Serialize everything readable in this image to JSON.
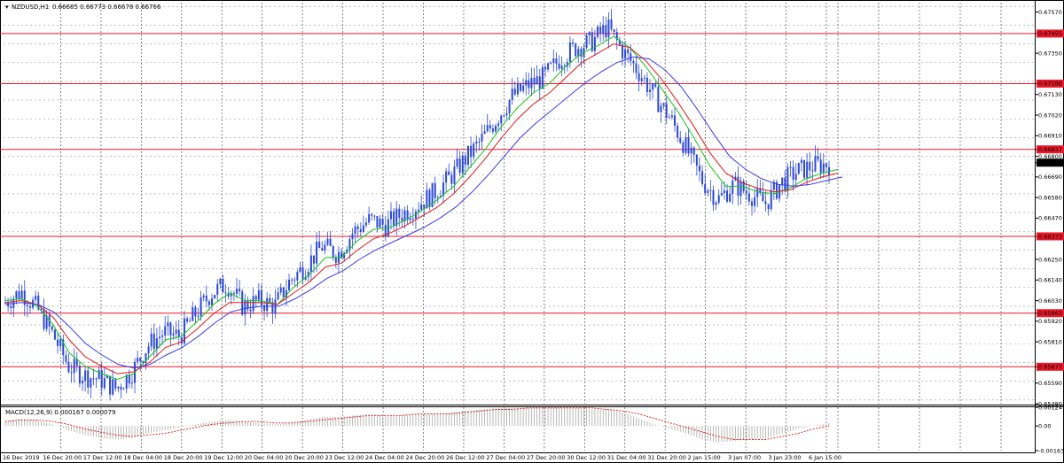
{
  "chart_data": {
    "type": "candlestick",
    "symbol_label": "NZDUSD,H1",
    "ohlc_label": "0.66685 0.66773 0.66678 0.66766",
    "current_price": "0.66766",
    "y_ticks": [
      "0.67570",
      "0.67455",
      "0.67350",
      "0.67188",
      "0.67130",
      "0.67020",
      "0.66910",
      "0.66837",
      "0.66800",
      "0.66766",
      "0.66690",
      "0.66580",
      "0.66470",
      "0.66373",
      "0.66250",
      "0.66140",
      "0.66030",
      "0.65963",
      "0.65920",
      "0.65810",
      "0.65677",
      "0.65590",
      "0.65480"
    ],
    "ylim": [
      0.6548,
      0.6762
    ],
    "horizontal_levels": [
      "0.67455",
      "0.67188",
      "0.66837",
      "0.66373",
      "0.65963",
      "0.65677"
    ],
    "level_color": "#e8182a",
    "x_labels": [
      "16 Dec 2019",
      "16 Dec 20:00",
      "17 Dec 12:00",
      "18 Dec 04:00",
      "18 Dec 20:00",
      "19 Dec 12:00",
      "20 Dec 04:00",
      "20 Dec 20:00",
      "23 Dec 12:00",
      "24 Dec 04:00",
      "24 Dec 20:00",
      "26 Dec 12:00",
      "27 Dec 04:00",
      "27 Dec 20:00",
      "30 Dec 12:00",
      "31 Dec 04:00",
      "31 Dec 20:00",
      "2 Jan 15:00",
      "3 Jan 07:00",
      "3 Jan 23:00",
      "6 Jan 15:00"
    ],
    "price_series": [
      {
        "color": "#2b49d8",
        "values": [
          0.6602,
          0.6608,
          0.6599,
          0.6585,
          0.6568,
          0.6563,
          0.6561,
          0.6556,
          0.6565,
          0.6579,
          0.6586,
          0.6584,
          0.6596,
          0.6607,
          0.6612,
          0.66,
          0.6603,
          0.66,
          0.6614,
          0.6622,
          0.6632,
          0.6628,
          0.664,
          0.6646,
          0.6643,
          0.6649,
          0.6654,
          0.666,
          0.6668,
          0.6678,
          0.6688,
          0.67,
          0.6712,
          0.6718,
          0.6722,
          0.6732,
          0.6738,
          0.6741,
          0.6749,
          0.6736,
          0.6725,
          0.6712,
          0.67,
          0.6684,
          0.6667,
          0.6657,
          0.6665,
          0.666,
          0.6655,
          0.6666,
          0.6672,
          0.6675,
          0.6676
        ]
      },
      {
        "color": "#19c419",
        "values": [
          0.6603,
          0.6604,
          0.66,
          0.659,
          0.6575,
          0.6568,
          0.6564,
          0.6561,
          0.6564,
          0.6573,
          0.6582,
          0.6584,
          0.6592,
          0.6601,
          0.6607,
          0.6603,
          0.6603,
          0.6601,
          0.661,
          0.6617,
          0.6626,
          0.6626,
          0.6635,
          0.6641,
          0.6642,
          0.6646,
          0.6651,
          0.6657,
          0.6664,
          0.6674,
          0.6684,
          0.6696,
          0.6706,
          0.6714,
          0.6719,
          0.6728,
          0.6735,
          0.6739,
          0.6744,
          0.6738,
          0.6728,
          0.6716,
          0.6704,
          0.669,
          0.6675,
          0.6664,
          0.6664,
          0.6661,
          0.666,
          0.6663,
          0.6668,
          0.6671,
          0.6673
        ]
      },
      {
        "color": "#e01a1a",
        "values": [
          0.6602,
          0.6603,
          0.6601,
          0.6594,
          0.6582,
          0.6573,
          0.6568,
          0.6564,
          0.6565,
          0.657,
          0.6578,
          0.6581,
          0.6588,
          0.6596,
          0.6602,
          0.6602,
          0.6602,
          0.6601,
          0.6607,
          0.6613,
          0.6621,
          0.6623,
          0.663,
          0.6636,
          0.6639,
          0.6643,
          0.6648,
          0.6653,
          0.666,
          0.6669,
          0.6679,
          0.669,
          0.67,
          0.6708,
          0.6714,
          0.6722,
          0.673,
          0.6735,
          0.674,
          0.6738,
          0.6731,
          0.6721,
          0.6709,
          0.6696,
          0.6682,
          0.6671,
          0.6666,
          0.6663,
          0.6661,
          0.6662,
          0.6666,
          0.6669,
          0.6671
        ]
      },
      {
        "color": "#3a3ae8",
        "values": [
          0.6601,
          0.6602,
          0.6601,
          0.6597,
          0.6589,
          0.658,
          0.6574,
          0.6569,
          0.6567,
          0.6569,
          0.6574,
          0.6578,
          0.6584,
          0.6591,
          0.6597,
          0.6599,
          0.66,
          0.66,
          0.6604,
          0.6609,
          0.6615,
          0.6619,
          0.6625,
          0.663,
          0.6634,
          0.6638,
          0.6642,
          0.6647,
          0.6653,
          0.6661,
          0.667,
          0.668,
          0.669,
          0.6698,
          0.6705,
          0.6712,
          0.6719,
          0.6725,
          0.673,
          0.6733,
          0.6732,
          0.6726,
          0.6717,
          0.6705,
          0.6692,
          0.668,
          0.6673,
          0.6668,
          0.6665,
          0.6664,
          0.6665,
          0.6667,
          0.6669
        ]
      }
    ],
    "macd": {
      "label": "MACD(12,26,9) 0.000167 0.000079",
      "y_ticks": [
        "0.001247",
        "0.00",
        "-0.001638"
      ],
      "ylim": [
        -0.001638,
        0.001247
      ],
      "histogram_color": "#a8a8a8",
      "signal_color": "#e01a1a",
      "values": [
        0.0003,
        0.0005,
        0.0004,
        0.0001,
        -0.0003,
        -0.0006,
        -0.0008,
        -0.0009,
        -0.0008,
        -0.0005,
        -0.0003,
        -0.0001,
        0.0001,
        0.0003,
        0.0004,
        0.0003,
        0.0002,
        0.0001,
        0.0002,
        0.0004,
        0.0006,
        0.0006,
        0.0007,
        0.0008,
        0.0007,
        0.0007,
        0.0008,
        0.0008,
        0.0009,
        0.001,
        0.0011,
        0.0012,
        0.0012,
        0.0012,
        0.0012,
        0.0012,
        0.0012,
        0.0011,
        0.0011,
        0.0009,
        0.0005,
        0.0001,
        -0.0002,
        -0.0005,
        -0.0009,
        -0.0011,
        -0.001,
        -0.0009,
        -0.0008,
        -0.0005,
        -0.0002,
        0.0,
        0.0002
      ],
      "signal": [
        0.0003,
        0.0004,
        0.0004,
        0.0003,
        0.0001,
        -0.0002,
        -0.0004,
        -0.0006,
        -0.0007,
        -0.0006,
        -0.0005,
        -0.0003,
        -0.0001,
        0.0001,
        0.0002,
        0.0003,
        0.0003,
        0.0002,
        0.0002,
        0.0003,
        0.0004,
        0.0005,
        0.0006,
        0.0007,
        0.0007,
        0.0007,
        0.0008,
        0.0008,
        0.0008,
        0.0009,
        0.001,
        0.0011,
        0.0011,
        0.0012,
        0.0012,
        0.0012,
        0.0012,
        0.0012,
        0.0011,
        0.001,
        0.0008,
        0.0005,
        0.0002,
        -0.0001,
        -0.0004,
        -0.0007,
        -0.0009,
        -0.0009,
        -0.0009,
        -0.0007,
        -0.0005,
        -0.0002,
        0.0
      ]
    }
  }
}
